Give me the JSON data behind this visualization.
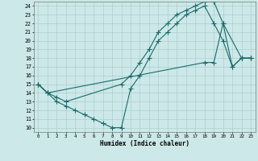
{
  "xlabel": "Humidex (Indice chaleur)",
  "bg_color": "#cce8e8",
  "line_color": "#1a6b6b",
  "xlim": [
    -0.5,
    23.5
  ],
  "ylim": [
    9.5,
    24.5
  ],
  "xticks": [
    0,
    1,
    2,
    3,
    4,
    5,
    6,
    7,
    8,
    9,
    10,
    11,
    12,
    13,
    14,
    15,
    16,
    17,
    18,
    19,
    20,
    21,
    22,
    23
  ],
  "yticks": [
    10,
    11,
    12,
    13,
    14,
    15,
    16,
    17,
    18,
    19,
    20,
    21,
    22,
    23,
    24
  ],
  "line1_x": [
    0,
    1,
    2,
    3,
    4,
    5,
    6,
    7,
    8,
    9,
    10,
    11,
    12,
    13,
    14,
    15,
    16,
    17,
    18,
    19,
    20,
    21,
    22,
    23
  ],
  "line1_y": [
    15,
    14,
    13,
    12.5,
    12,
    11.5,
    11,
    10.5,
    10,
    10,
    14.5,
    16,
    18,
    20,
    21,
    22,
    23,
    23.5,
    24,
    22,
    20,
    17,
    18,
    18
  ],
  "line2_x": [
    0,
    1,
    2,
    3,
    9,
    10,
    11,
    12,
    13,
    14,
    15,
    16,
    17,
    18,
    19,
    20,
    22,
    23
  ],
  "line2_y": [
    15,
    14,
    13.5,
    13,
    15,
    16,
    17.5,
    19,
    21,
    22,
    23,
    23.5,
    24,
    24.5,
    24.5,
    22,
    18,
    18
  ],
  "line3_x": [
    0,
    1,
    18,
    19,
    20,
    21,
    22,
    23
  ],
  "line3_y": [
    15,
    14,
    17.5,
    17.5,
    22,
    17,
    18,
    18
  ]
}
